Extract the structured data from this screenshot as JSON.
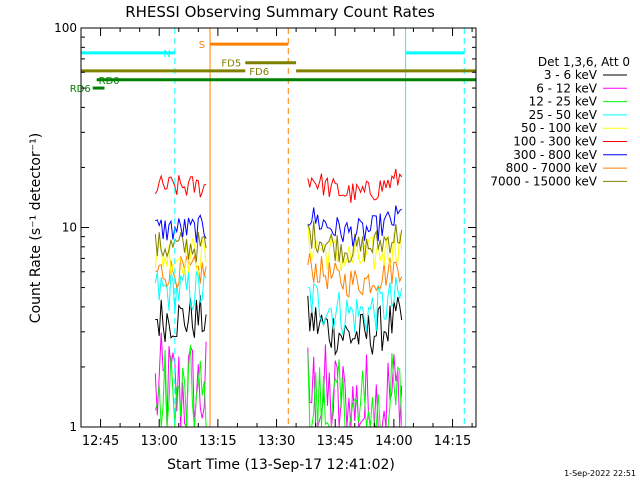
{
  "chart_data": {
    "type": "line",
    "title": "RHESSI Observing Summary Count Rates",
    "xlabel": "Start Time (13-Sep-17 12:41:02)",
    "ylabel": "Count Rate (s⁻¹ detector⁻¹)",
    "y_scale": "log",
    "ylim": [
      1,
      100
    ],
    "y_ticks": [
      "1",
      "10",
      "100"
    ],
    "x_range_minutes": [
      "12:40",
      "14:21"
    ],
    "x_ticks": [
      "12:45",
      "13:00",
      "13:15",
      "13:30",
      "13:45",
      "14:00",
      "14:15"
    ],
    "legend_title": "Det 1,3,6, Att 0",
    "legend_position": "right",
    "timestamp": "1-Sep-2022 22:51",
    "series": [
      {
        "name": "3 - 6 keV",
        "color": "#000000",
        "level_1": 3.5,
        "level_2": 3.5,
        "spread": 0.12
      },
      {
        "name": "6 - 12 keV",
        "color": "#ff00ff",
        "level_1": 1.5,
        "level_2": 1.5,
        "spread": 0.3
      },
      {
        "name": "12 - 25 keV",
        "color": "#00ff00",
        "level_1": 1.3,
        "level_2": 1.3,
        "spread": 0.3
      },
      {
        "name": "25 - 50 keV",
        "color": "#00ffff",
        "level_1": 4.8,
        "level_2": 4.5,
        "spread": 0.12
      },
      {
        "name": "50 - 100 keV",
        "color": "#ffff00",
        "level_1": 7.2,
        "level_2": 8.5,
        "spread": 0.1
      },
      {
        "name": "100 - 300 keV",
        "color": "#ff0000",
        "level_1": 16,
        "level_2": 18,
        "spread": 0.06
      },
      {
        "name": "300 - 800 keV",
        "color": "#0000ff",
        "level_1": 9.8,
        "level_2": 11.5,
        "spread": 0.07
      },
      {
        "name": "800 - 7000 keV",
        "color": "#ff8000",
        "level_1": 6,
        "level_2": 6.5,
        "spread": 0.08
      },
      {
        "name": "7000 - 15000 keV",
        "color": "#808000",
        "level_1": 8,
        "level_2": 9.5,
        "spread": 0.08
      }
    ],
    "data_intervals": [
      {
        "start": "12:59",
        "end": "13:12"
      },
      {
        "start": "13:38",
        "end": "14:02"
      }
    ],
    "flag_bars": [
      {
        "label": "N",
        "color": "#00ffff",
        "y": 75,
        "segments": [
          [
            "12:40",
            "13:04"
          ],
          [
            "14:03",
            "14:18"
          ]
        ]
      },
      {
        "label": "S",
        "color": "#ff8000",
        "y": 83,
        "segments": [
          [
            "13:13",
            "13:33"
          ]
        ]
      },
      {
        "label": "FD5",
        "color": "#808000",
        "y": 67,
        "segments": [
          [
            "13:22",
            "13:35"
          ]
        ]
      },
      {
        "label": "FD6",
        "color": "#808000",
        "y": 61,
        "segments": [
          [
            "12:40",
            "13:22"
          ],
          [
            "13:35",
            "14:21"
          ]
        ]
      },
      {
        "label": "RD0",
        "color": "#008000",
        "y": 55,
        "segments": [
          [
            "12:44",
            "14:21"
          ]
        ]
      },
      {
        "label": "RD6",
        "color": "#008000",
        "y": 50,
        "segments": [
          [
            "12:43",
            "12:46"
          ]
        ]
      }
    ],
    "vertical_lines": [
      {
        "time": "12:40",
        "color": "#00ffff",
        "style": "solid"
      },
      {
        "time": "13:04",
        "color": "#00ffff",
        "style": "dashed"
      },
      {
        "time": "13:13",
        "color": "#ff8000",
        "style": "solid"
      },
      {
        "time": "13:33",
        "color": "#ff8000",
        "style": "dashed"
      },
      {
        "time": "14:03",
        "color": "#00ffff",
        "style": "solid"
      },
      {
        "time": "14:18",
        "color": "#00ffff",
        "style": "dashed"
      }
    ]
  }
}
